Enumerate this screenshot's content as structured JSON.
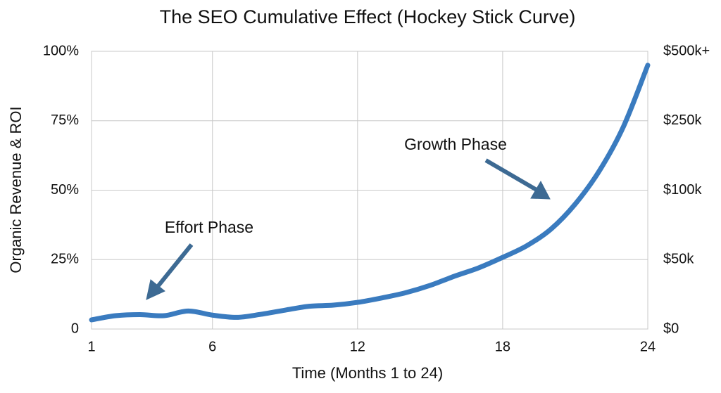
{
  "chart_data": {
    "type": "line",
    "title": "The SEO Cumulative Effect (Hockey Stick Curve)",
    "x_label": "Time (Months 1 to 24)",
    "y_label": "Organic Revenue & ROI",
    "x": [
      1,
      2,
      3,
      4,
      5,
      6,
      7,
      8,
      9,
      10,
      11,
      12,
      13,
      14,
      15,
      16,
      17,
      18,
      19,
      20,
      21,
      22,
      23,
      24
    ],
    "series": [
      {
        "color": "#3a7bbf",
        "values": [
          3.3,
          4.8,
          5.2,
          4.8,
          6.5,
          5.0,
          4.2,
          5.3,
          6.8,
          8.2,
          8.6,
          9.6,
          11.2,
          13.1,
          15.7,
          19,
          22,
          25.8,
          30,
          36,
          45,
          57,
          73,
          95
        ]
      }
    ],
    "xlim": [
      1,
      24
    ],
    "xticks": [
      1,
      6,
      12,
      18,
      24
    ],
    "ylim": [
      0,
      100
    ],
    "yticks": [
      0,
      {
        "value": 25,
        "label": "25%"
      },
      {
        "value": 50,
        "label": "50%"
      },
      {
        "value": 75,
        "label": "75%"
      },
      {
        "value": 100,
        "label": "100%"
      }
    ],
    "y2_labels": [
      "$0",
      "$50k",
      "$100k",
      "$250k",
      "$500k+"
    ],
    "annotations": [
      "Effort Phase",
      "Growth Phase"
    ],
    "grid": true
  }
}
